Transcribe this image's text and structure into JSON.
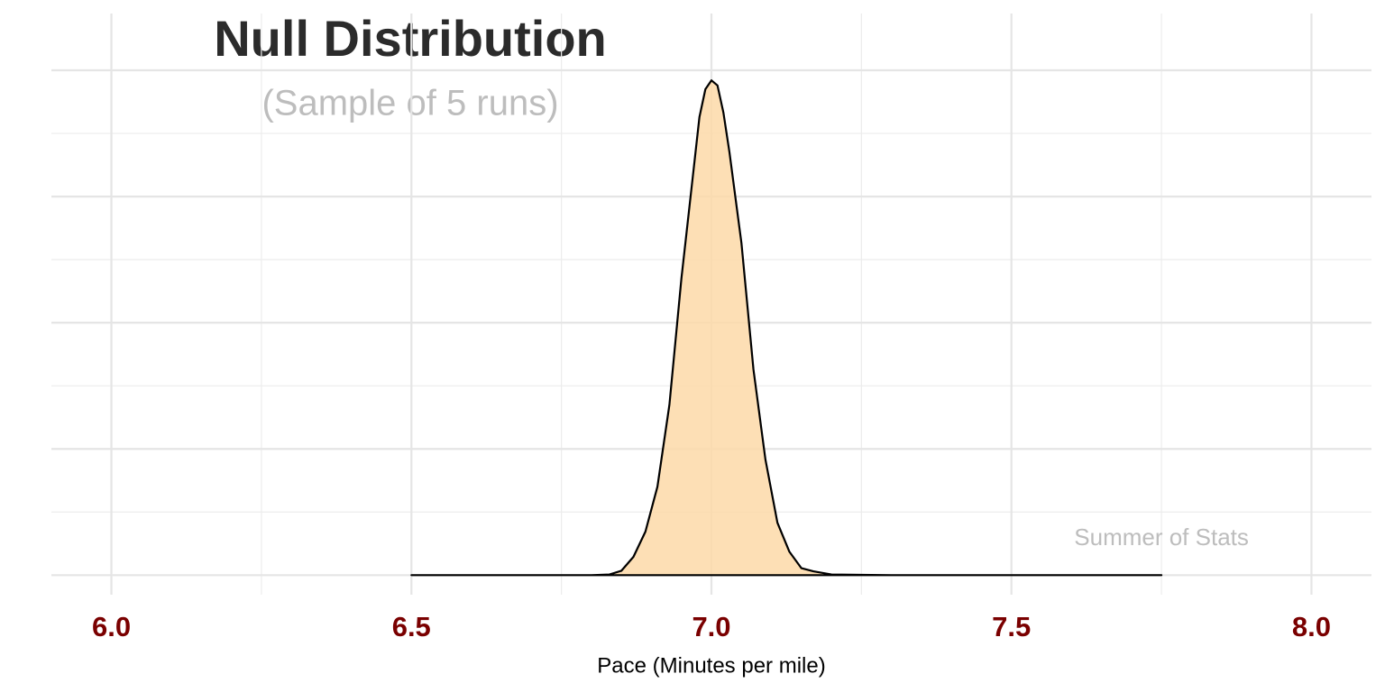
{
  "chart_data": {
    "type": "density",
    "title": "Null Distribution",
    "subtitle": "(Sample of 5 runs)",
    "xlabel": "Pace (Minutes per mile)",
    "annotation": {
      "text": "Summer of Stats",
      "x": 7.75,
      "y": 0.57
    },
    "x": [
      6.5,
      6.7,
      6.8,
      6.83,
      6.85,
      6.87,
      6.89,
      6.91,
      6.93,
      6.95,
      6.97,
      6.98,
      6.99,
      7.0,
      7.01,
      7.02,
      7.03,
      7.05,
      7.07,
      7.09,
      7.11,
      7.13,
      7.15,
      7.17,
      7.2,
      7.3,
      7.75
    ],
    "y": [
      0,
      0,
      0,
      0.01,
      0.07,
      0.29,
      0.69,
      1.4,
      2.7,
      4.7,
      6.4,
      7.26,
      7.7,
      7.84,
      7.76,
      7.33,
      6.7,
      5.26,
      3.26,
      1.83,
      0.83,
      0.37,
      0.11,
      0.06,
      0.01,
      0,
      0
    ],
    "fill": "#fdd9a8",
    "line_color": "#000000",
    "xlim": [
      5.9,
      8.1
    ],
    "xticks": [
      {
        "value": 6,
        "label": "6.0"
      },
      6.5,
      {
        "value": 7,
        "label": "7.0"
      },
      7.5,
      {
        "value": 8,
        "label": "8.0"
      }
    ],
    "xminor": [
      6.25,
      6.75,
      7.25,
      7.75
    ],
    "ylim": [
      -0.31,
      8.9
    ],
    "yticks": [
      0,
      2,
      4,
      6,
      8
    ],
    "yminor": [
      1,
      3,
      5,
      7
    ],
    "grid": true
  }
}
